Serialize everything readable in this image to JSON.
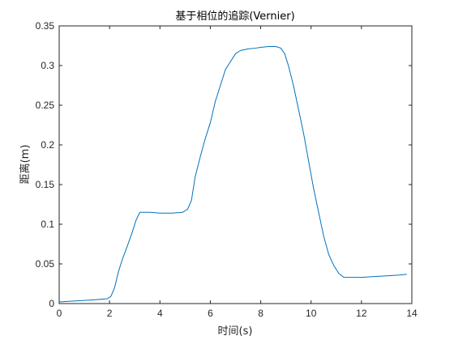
{
  "chart_data": {
    "type": "line",
    "title": "基于相位的追踪(Vernier)",
    "xlabel": "时间(s)",
    "ylabel": "距离(m)",
    "xlim": [
      0,
      14
    ],
    "ylim": [
      0,
      0.35
    ],
    "xticks": [
      0,
      2,
      4,
      6,
      8,
      10,
      12,
      14
    ],
    "xtick_labels": [
      "0",
      "2",
      "4",
      "6",
      "8",
      "10",
      "12",
      "14"
    ],
    "yticks": [
      0,
      0.05,
      0.1,
      0.15,
      0.2,
      0.25,
      0.3,
      0.35
    ],
    "ytick_labels": [
      "0",
      "0.05",
      "0.1",
      "0.15",
      "0.2",
      "0.25",
      "0.3",
      "0.35"
    ],
    "grid": false,
    "line_color": "#0072BD",
    "axis_color": "#262626",
    "series": [
      {
        "x": [
          0,
          0.5,
          1.0,
          1.5,
          1.9,
          2.05,
          2.2,
          2.35,
          2.5,
          2.7,
          2.9,
          3.05,
          3.2,
          3.6,
          4.0,
          4.5,
          4.9,
          5.1,
          5.25,
          5.4,
          5.6,
          5.8,
          6.0,
          6.2,
          6.4,
          6.6,
          6.8,
          7.0,
          7.2,
          7.5,
          7.8,
          8.0,
          8.3,
          8.6,
          8.8,
          8.95,
          9.1,
          9.3,
          9.5,
          9.7,
          9.9,
          10.1,
          10.3,
          10.5,
          10.7,
          10.9,
          11.1,
          11.3,
          11.6,
          12.0,
          12.5,
          13.0,
          13.5,
          13.8
        ],
        "y": [
          0.002,
          0.003,
          0.004,
          0.005,
          0.006,
          0.009,
          0.02,
          0.04,
          0.055,
          0.072,
          0.09,
          0.105,
          0.115,
          0.115,
          0.114,
          0.114,
          0.115,
          0.119,
          0.13,
          0.16,
          0.185,
          0.208,
          0.228,
          0.255,
          0.275,
          0.295,
          0.305,
          0.315,
          0.319,
          0.321,
          0.322,
          0.323,
          0.324,
          0.324,
          0.322,
          0.315,
          0.3,
          0.275,
          0.245,
          0.215,
          0.18,
          0.145,
          0.115,
          0.085,
          0.062,
          0.048,
          0.038,
          0.033,
          0.033,
          0.033,
          0.034,
          0.035,
          0.036,
          0.037
        ]
      }
    ]
  }
}
